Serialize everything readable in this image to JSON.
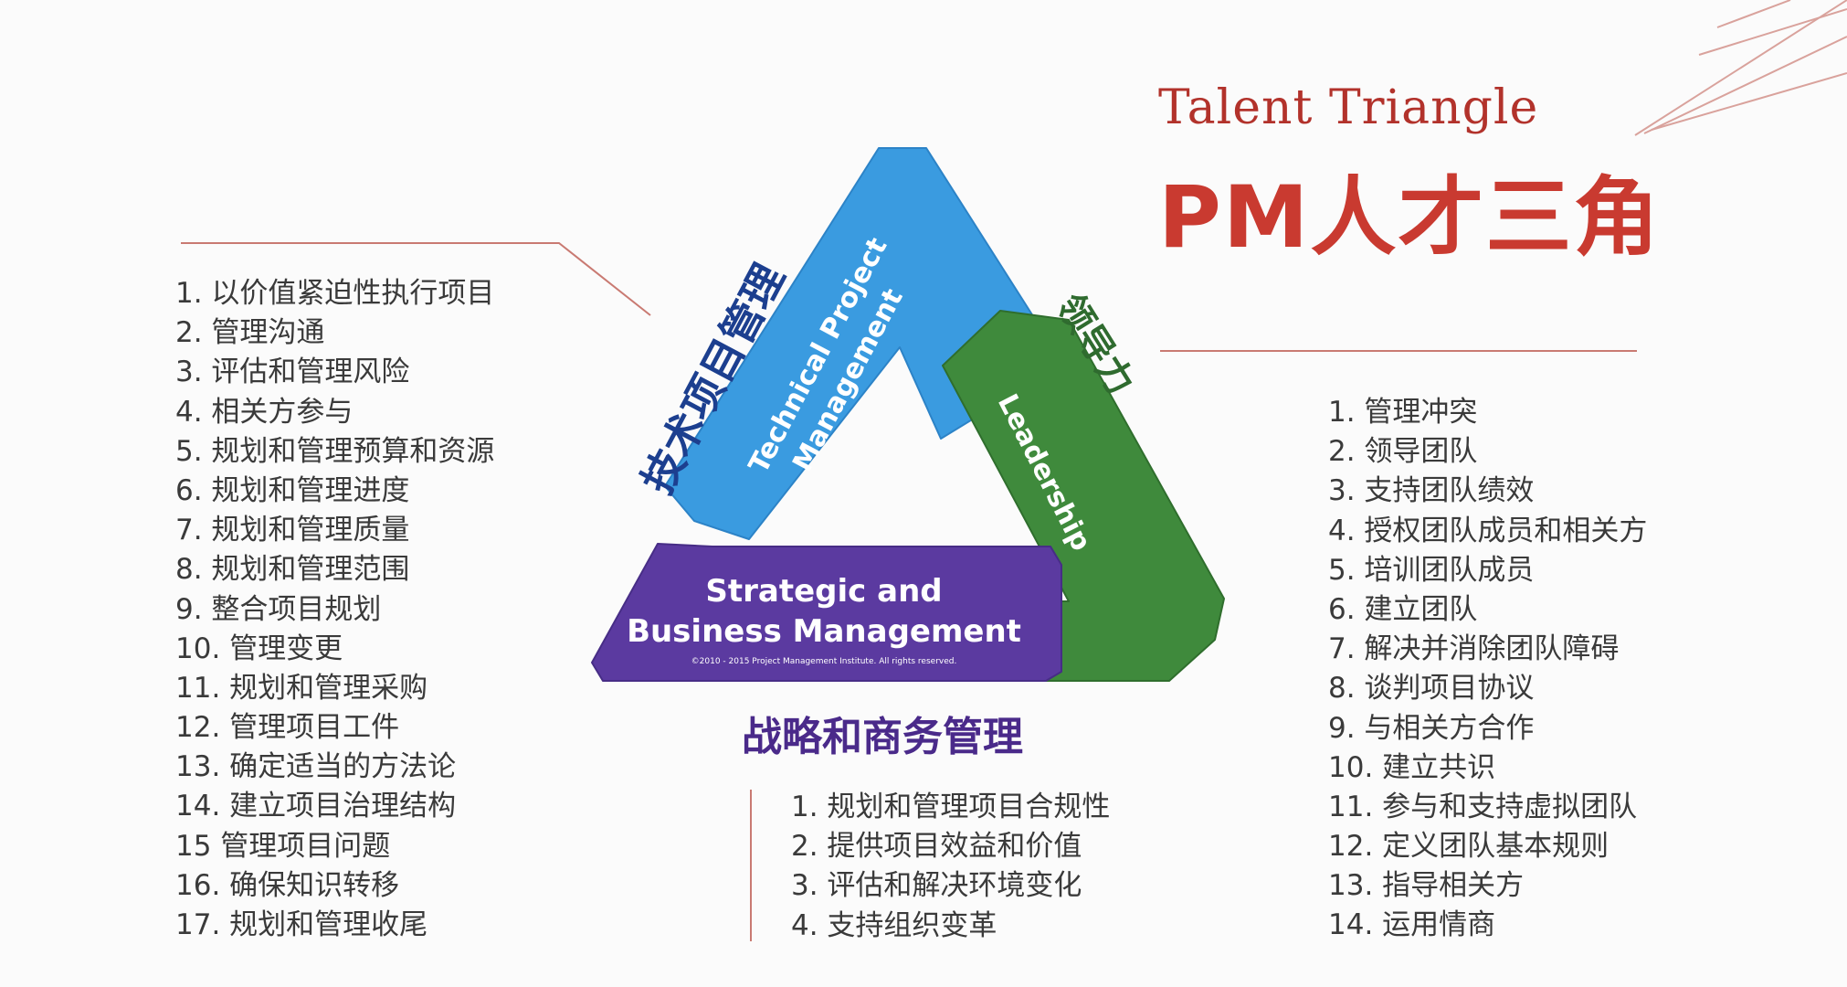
{
  "title": {
    "en": "Talent Triangle",
    "zh": "PM人才三角"
  },
  "triangle": {
    "technical": "Technical Project Management",
    "technical_line1": "Technical Project",
    "technical_line2": "Management",
    "leadership": "Leadership",
    "strategic_line1": "Strategic and",
    "strategic_line2": "Business Management",
    "copyright": "©2010 - 2015 Project Management Institute. All rights reserved."
  },
  "labels": {
    "technical_zh": "技术项目管理",
    "leadership_zh": "领导力",
    "strategic_zh": "战略和商务管理"
  },
  "colors": {
    "title_red": "#c93a30",
    "technical_blue": "#3a9be0",
    "leadership_green": "#3f8a3c",
    "strategic_purple": "#5b3aa0"
  },
  "technical_list": [
    "1. 以价值紧迫性执行项目",
    "2. 管理沟通",
    "3. 评估和管理风险",
    "4. 相关方参与",
    "5. 规划和管理预算和资源",
    "6. 规划和管理进度",
    "7. 规划和管理质量",
    "8. 规划和管理范围",
    "9. 整合项目规划",
    "10. 管理变更",
    "11. 规划和管理采购",
    "12. 管理项目工件",
    "13. 确定适当的方法论",
    "14. 建立项目治理结构",
    "15 管理项目问题",
    "16. 确保知识转移",
    "17. 规划和管理收尾"
  ],
  "leadership_list": [
    "1. 管理冲突",
    "2. 领导团队",
    "3. 支持团队绩效",
    "4. 授权团队成员和相关方",
    "5. 培训团队成员",
    "6. 建立团队",
    "7. 解决并消除团队障碍",
    "8. 谈判项目协议",
    "9. 与相关方合作",
    "10. 建立共识",
    "11. 参与和支持虚拟团队",
    "12. 定义团队基本规则",
    "13. 指导相关方",
    "14. 运用情商"
  ],
  "strategic_list": [
    "1. 规划和管理项目合规性",
    "2. 提供项目效益和价值",
    "3. 评估和解决环境变化",
    "4. 支持组织变革"
  ]
}
